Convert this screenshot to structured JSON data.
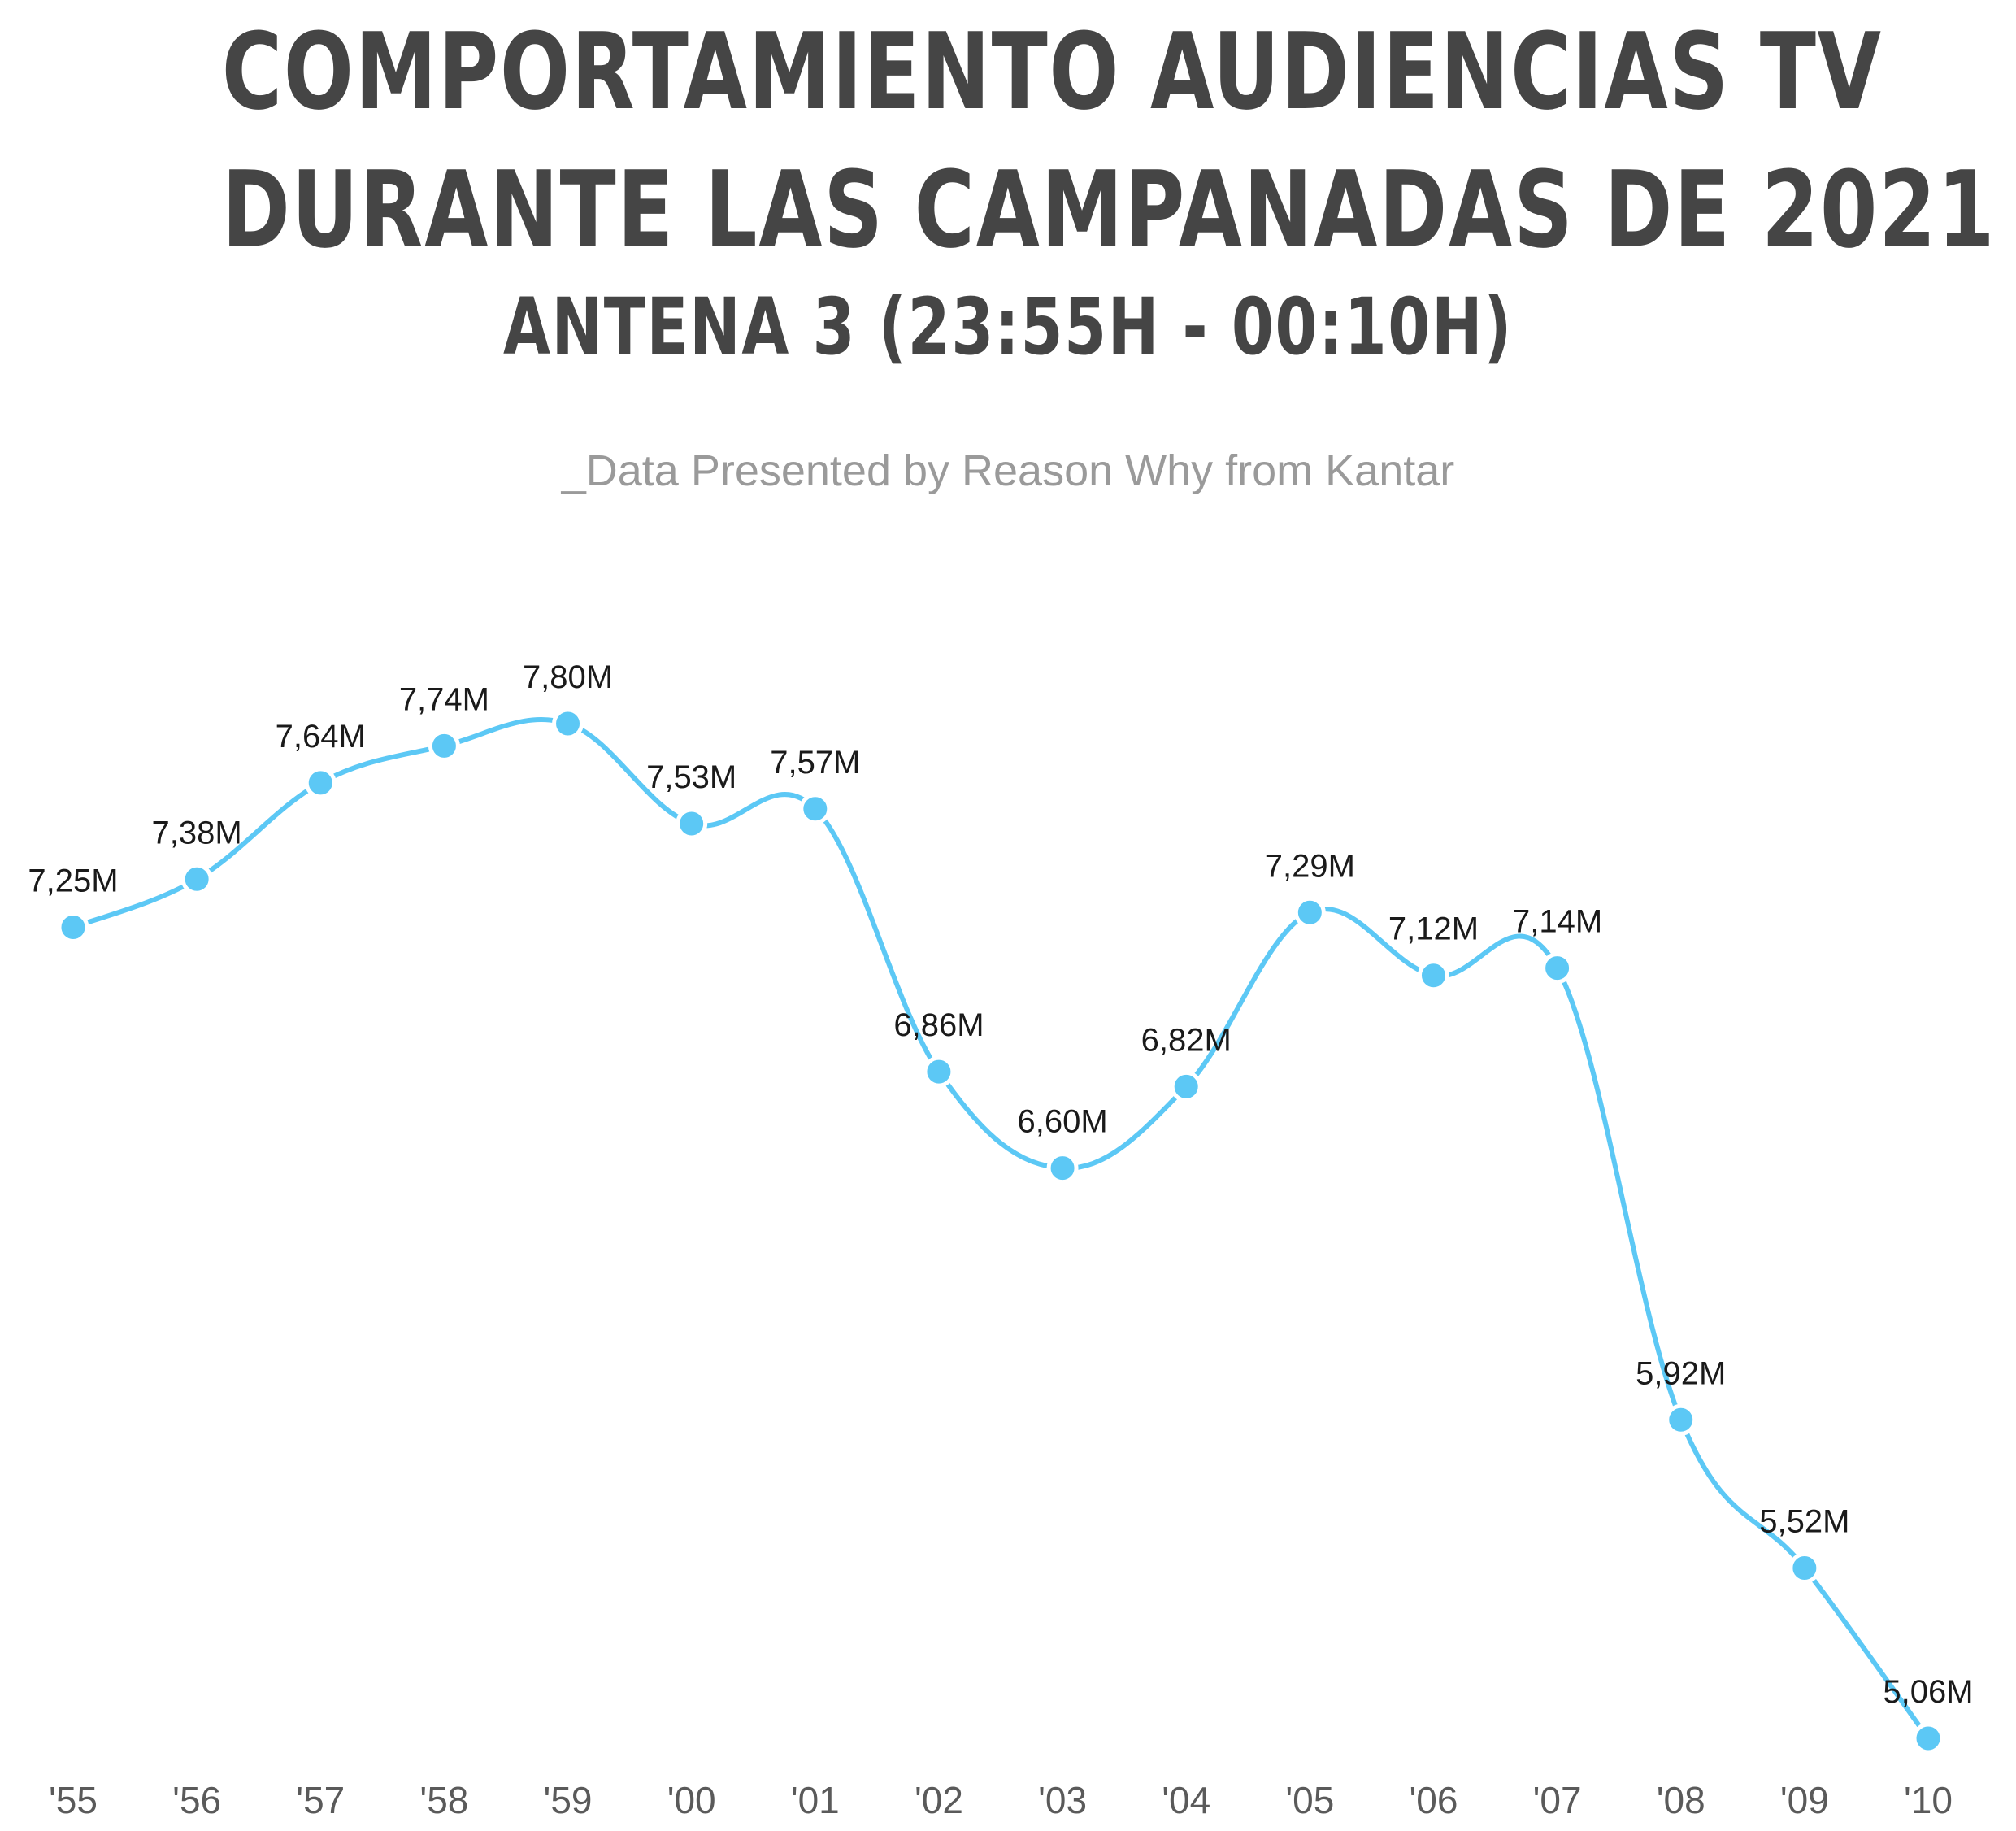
{
  "header": {
    "title_line1": "COMPORTAMIENTO AUDIENCIAS TV",
    "title_line2": "DURANTE LAS CAMPANADAS DE 2021",
    "title_line3": "ANTENA 3 (23:55H - 00:10H)",
    "subtitle": "_Data Presented by Reason Why from Kantar"
  },
  "chart_data": {
    "type": "line",
    "title": "",
    "xlabel": "",
    "ylabel": "",
    "categories": [
      "'55",
      "'56",
      "'57",
      "'58",
      "'59",
      "'00",
      "'01",
      "'02",
      "'03",
      "'04",
      "'05",
      "'06",
      "'07",
      "'08",
      "'09",
      "'10"
    ],
    "values": [
      7.25,
      7.38,
      7.64,
      7.74,
      7.8,
      7.53,
      7.57,
      6.86,
      6.6,
      6.82,
      7.29,
      7.12,
      7.14,
      5.92,
      5.52,
      5.06
    ],
    "data_labels": [
      "7,25M",
      "7,38M",
      "7,64M",
      "7,74M",
      "7,80M",
      "7,53M",
      "7,57M",
      "6,86M",
      "6,60M",
      "6,82M",
      "7,29M",
      "7,12M",
      "7,14M",
      "5,92M",
      "5,52M",
      "5,06M"
    ],
    "ylim": [
      5.06,
      7.8
    ],
    "grid": false,
    "smooth": true,
    "color": "#5cc8f5",
    "marker_color": "#5cc8f5"
  }
}
